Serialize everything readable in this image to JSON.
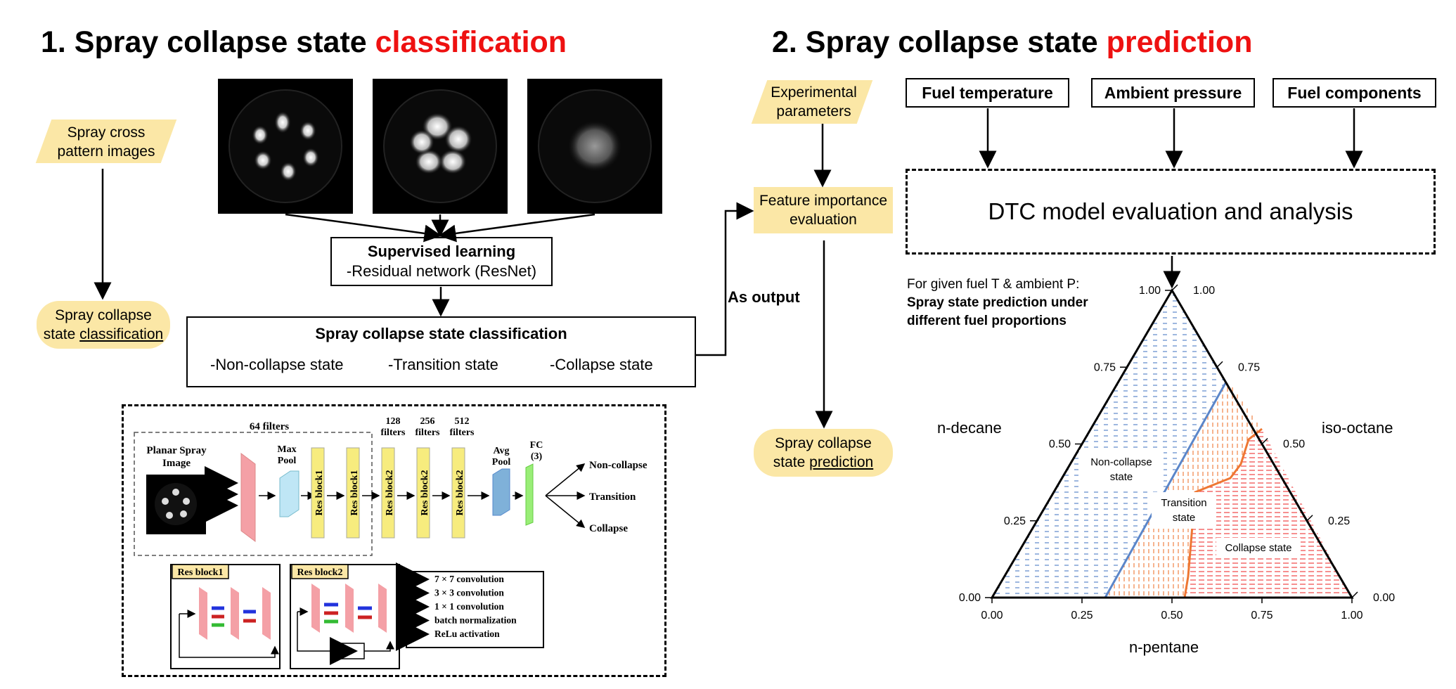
{
  "section1": {
    "title_prefix": "1. Spray collapse state ",
    "title_highlight": "classification"
  },
  "section2": {
    "title_prefix": "2. Spray collapse state ",
    "title_highlight": "prediction"
  },
  "left_flow": {
    "input_line1": "Spray cross",
    "input_line2": "pattern images",
    "output_line1": "Spray collapse",
    "output_line2_prefix": "state ",
    "output_line2_underlined": "classification"
  },
  "supervised": {
    "title": "Supervised learning",
    "subtitle": "-Residual network (ResNet)"
  },
  "classification_box": {
    "title": "Spray collapse state classification",
    "states": [
      "-Non-collapse state",
      "-Transition state",
      "-Collapse state"
    ]
  },
  "as_output": "As output",
  "cnn": {
    "input_label_line1": "Planar Spray",
    "input_label_line2": "Image",
    "filters_64": "64 filters",
    "maxpool_line1": "Max",
    "maxpool_line2": "Pool",
    "filters_128_line1": "128",
    "filters_256_line1": "256",
    "filters_512_line1": "512",
    "filters_word": "filters",
    "resblocks": [
      "Res block1",
      "Res block1",
      "Res block2",
      "Res block2",
      "Res block2"
    ],
    "avgpool_line1": "Avg",
    "avgpool_line2": "Pool",
    "fc_line1": "FC",
    "fc_line2": "(3)",
    "outputs": [
      "Non-collapse",
      "Transition",
      "Collapse"
    ],
    "resblock1_title": "Res block1",
    "resblock2_title": "Res block2",
    "legend": [
      {
        "label": "7 × 7 convolution",
        "color": "#111111"
      },
      {
        "label": "3 × 3 convolution",
        "color": "#2233dd"
      },
      {
        "label": "1 × 1 convolution",
        "color": "#aaaaaa"
      },
      {
        "label": "batch normalization",
        "color": "#cc2222"
      },
      {
        "label": "ReLu activation",
        "color": "#33bb33"
      }
    ]
  },
  "middle_flow": {
    "exp_line1": "Experimental",
    "exp_line2": "parameters",
    "feat_line1": "Feature importance",
    "feat_line2": "evaluation",
    "pred_line1": "Spray collapse",
    "pred_line2_prefix": "state ",
    "pred_line2_underlined": "prediction"
  },
  "right_flow": {
    "inputs": [
      "Fuel temperature",
      "Ambient pressure",
      "Fuel components"
    ],
    "dtc": "DTC model evaluation and analysis"
  },
  "ternary": {
    "note_line1": "For given fuel T & ambient P:",
    "note_line2": "Spray state prediction under",
    "note_line3": "different fuel proportions",
    "axis_left": "n-decane",
    "axis_right": "iso-octane",
    "axis_bottom": "n-pentane",
    "left_ticks": [
      "0.00",
      "0.25",
      "0.50",
      "0.75",
      "1.00"
    ],
    "right_ticks": [
      "0.00",
      "0.25",
      "0.50",
      "0.75",
      "1.00"
    ],
    "bottom_ticks": [
      "0.00",
      "0.25",
      "0.50",
      "0.75",
      "1.00"
    ],
    "region_noncollapse_line1": "Non-collapse",
    "region_noncollapse_line2": "state",
    "region_transition_line1": "Transition",
    "region_transition_line2": "state",
    "region_collapse": "Collapse state",
    "colors": {
      "noncollapse": "#5b86c9",
      "transition": "#ee7733",
      "collapse": "#ee3333"
    }
  }
}
